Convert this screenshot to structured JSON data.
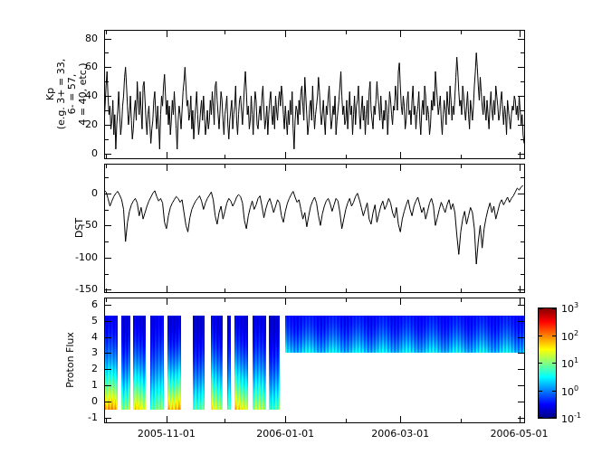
{
  "figure": {
    "background": "#ffffff",
    "line_color": "#000000",
    "x_axis": {
      "domain_days": [
        0,
        216
      ],
      "start_date": "2005-09-30",
      "major_ticks": [
        {
          "day": 32,
          "label": "2005-11-01"
        },
        {
          "day": 93,
          "label": "2006-01-01"
        },
        {
          "day": 152,
          "label": "2006-03-01"
        },
        {
          "day": 213,
          "label": "2006-05-01"
        }
      ],
      "minor_tick_days": [
        1,
        62,
        124,
        183
      ]
    }
  },
  "chart_data": [
    {
      "type": "line",
      "series_name": "Kp",
      "ylabel": "Kp (e.g. 3+ = 33, 6- = 57, 4 = 40, etc.)",
      "ylabel_lines": [
        "Kp",
        "(e.g. 3+ = 33,",
        "6- = 57,",
        "4 = 40, etc.)"
      ],
      "ylim": [
        -4,
        86
      ],
      "yticks": [
        0,
        20,
        40,
        60,
        80
      ],
      "yminor_step": 10,
      "x_start_day": 0,
      "x_step_days": 0.5,
      "values": [
        20,
        33,
        47,
        57,
        40,
        27,
        33,
        17,
        23,
        37,
        13,
        27,
        3,
        20,
        30,
        43,
        27,
        13,
        20,
        33,
        40,
        53,
        60,
        47,
        33,
        20,
        27,
        40,
        23,
        10,
        17,
        30,
        37,
        23,
        50,
        37,
        27,
        43,
        30,
        17,
        47,
        50,
        37,
        23,
        13,
        27,
        33,
        20,
        7,
        17,
        23,
        37,
        43,
        27,
        17,
        33,
        20,
        3,
        27,
        40,
        33,
        47,
        55,
        40,
        27,
        37,
        20,
        33,
        13,
        23,
        37,
        27,
        43,
        30,
        17,
        3,
        23,
        33,
        27,
        17,
        30,
        43,
        50,
        60,
        47,
        33,
        37,
        23,
        27,
        40,
        17,
        30,
        10,
        23,
        33,
        43,
        27,
        13,
        20,
        30,
        37,
        23,
        40,
        27,
        13,
        20,
        30,
        17,
        23,
        37,
        27,
        43,
        33,
        20,
        47,
        50,
        37,
        27,
        17,
        30,
        43,
        37,
        23,
        13,
        27,
        33,
        40,
        20,
        10,
        23,
        30,
        37,
        17,
        27,
        33,
        47,
        23,
        13,
        27,
        37,
        40,
        30,
        20,
        33,
        47,
        57,
        43,
        27,
        33,
        17,
        23,
        40,
        27,
        13,
        30,
        43,
        37,
        20,
        17,
        27,
        33,
        23,
        40,
        47,
        30,
        17,
        23,
        33,
        13,
        27,
        37,
        43,
        27,
        20,
        33,
        17,
        40,
        30,
        23,
        37,
        43,
        33,
        47,
        40,
        27,
        17,
        33,
        23,
        13,
        30,
        20,
        37,
        27,
        43,
        17,
        3,
        23,
        33,
        30,
        20,
        37,
        27,
        43,
        47,
        33,
        23,
        53,
        40,
        27,
        13,
        20,
        33,
        37,
        23,
        47,
        30,
        17,
        27,
        33,
        40,
        53,
        43,
        30,
        20,
        27,
        37,
        23,
        13,
        33,
        27,
        40,
        47,
        30,
        17,
        23,
        33,
        27,
        40,
        13,
        23,
        30,
        37,
        47,
        57,
        40,
        27,
        33,
        20,
        23,
        37,
        17,
        30,
        43,
        27,
        33,
        13,
        27,
        40,
        20,
        33,
        37,
        47,
        27,
        17,
        30,
        40,
        23,
        33,
        13,
        27,
        37,
        20,
        43,
        50,
        30,
        23,
        17,
        33,
        27,
        37,
        50,
        40,
        33,
        23,
        40,
        27,
        17,
        30,
        23,
        37,
        33,
        13,
        27,
        43,
        37,
        27,
        20,
        33,
        30,
        47,
        40,
        30,
        57,
        63,
        47,
        33,
        27,
        40,
        33,
        17,
        23,
        37,
        43,
        27,
        30,
        20,
        37,
        47,
        27,
        33,
        17,
        27,
        33,
        43,
        23,
        13,
        30,
        37,
        27,
        47,
        40,
        23,
        33,
        27,
        13,
        20,
        37,
        30,
        43,
        33,
        57,
        47,
        37,
        27,
        33,
        40,
        23,
        13,
        27,
        37,
        30,
        20,
        43,
        33,
        27,
        47,
        37,
        23,
        33,
        27,
        40,
        53,
        67,
        57,
        43,
        33,
        37,
        27,
        47,
        40,
        30,
        23,
        33,
        43,
        27,
        17,
        37,
        30,
        23,
        33,
        47,
        57,
        70,
        60,
        47,
        37,
        53,
        43,
        33,
        27,
        40,
        30,
        23,
        37,
        27,
        17,
        33,
        43,
        30,
        23,
        37,
        27,
        47,
        40,
        33,
        23,
        27,
        37,
        43,
        30,
        20,
        33,
        27,
        13,
        37,
        30,
        23,
        17,
        27,
        33,
        30,
        40,
        37,
        27,
        33,
        23,
        40,
        30,
        20,
        27,
        13,
        7
      ]
    },
    {
      "type": "line",
      "series_name": "DST",
      "ylabel": "DST",
      "ylim": [
        -155,
        46
      ],
      "yticks": [
        0,
        -50,
        -100,
        -150
      ],
      "yminor_step": 25,
      "x_start_day": 0,
      "x_step_days": 1,
      "values": [
        5,
        2,
        -8,
        -20,
        -12,
        -5,
        0,
        3,
        -3,
        -10,
        -25,
        -75,
        -45,
        -28,
        -18,
        -12,
        -8,
        -15,
        -35,
        -22,
        -40,
        -30,
        -20,
        -12,
        -6,
        0,
        4,
        -5,
        -12,
        -8,
        -15,
        -45,
        -55,
        -35,
        -22,
        -15,
        -10,
        -5,
        -8,
        -14,
        -10,
        -30,
        -50,
        -60,
        -38,
        -25,
        -18,
        -12,
        -8,
        -4,
        -12,
        -25,
        -15,
        -8,
        -3,
        2,
        -10,
        -35,
        -48,
        -30,
        -20,
        -40,
        -28,
        -15,
        -8,
        -12,
        -20,
        -14,
        -6,
        -2,
        -5,
        -15,
        -42,
        -55,
        -35,
        -22,
        -12,
        -25,
        -18,
        -8,
        -4,
        -20,
        -38,
        -24,
        -14,
        -8,
        -18,
        -30,
        -20,
        -10,
        -15,
        -35,
        -45,
        -28,
        -16,
        -8,
        -2,
        3,
        -6,
        -14,
        -10,
        -25,
        -40,
        -30,
        -52,
        -35,
        -20,
        -12,
        -6,
        -15,
        -35,
        -50,
        -32,
        -20,
        -12,
        -8,
        -16,
        -28,
        -18,
        -8,
        -12,
        -30,
        -55,
        -40,
        -25,
        -15,
        -8,
        -20,
        -14,
        -5,
        0,
        -10,
        -22,
        -35,
        -25,
        -15,
        -40,
        -48,
        -30,
        -18,
        -45,
        -32,
        -20,
        -12,
        -25,
        -18,
        -8,
        -15,
        -30,
        -38,
        -22,
        -48,
        -60,
        -40,
        -28,
        -18,
        -10,
        -25,
        -35,
        -20,
        -12,
        -6,
        -18,
        -30,
        -22,
        -40,
        -28,
        -15,
        -8,
        -20,
        -50,
        -38,
        -25,
        -14,
        -22,
        -30,
        -18,
        -10,
        -25,
        -16,
        -30,
        -65,
        -95,
        -60,
        -40,
        -28,
        -48,
        -35,
        -22,
        -30,
        -55,
        -110,
        -75,
        -50,
        -85,
        -55,
        -38,
        -25,
        -15,
        -30,
        -20,
        -40,
        -28,
        -16,
        -10,
        -18,
        -12,
        -6,
        -14,
        -8,
        -4,
        2,
        8,
        5,
        10,
        12
      ]
    },
    {
      "type": "heatmap",
      "series_name": "Proton Flux",
      "ylabel": "Proton Flux",
      "ylim": [
        -1.35,
        6.45
      ],
      "yticks": [
        -1,
        0,
        1,
        2,
        3,
        4,
        5,
        6
      ],
      "colormap": "jet",
      "flux_log_range": [
        -1,
        3
      ],
      "segments": [
        {
          "t0": 0,
          "t1": 7,
          "y0": -0.5,
          "y1": 5.3,
          "logf_bottom": 1.8,
          "logf_top": -0.6
        },
        {
          "t0": 9,
          "t1": 13.5,
          "y0": -0.5,
          "y1": 5.3,
          "logf_bottom": 1.2,
          "logf_top": -0.6
        },
        {
          "t0": 15,
          "t1": 21.5,
          "y0": -0.5,
          "y1": 5.3,
          "logf_bottom": 1.5,
          "logf_top": -0.65
        },
        {
          "t0": 23.5,
          "t1": 30.5,
          "y0": -0.5,
          "y1": 5.3,
          "logf_bottom": 0.9,
          "logf_top": -0.6
        },
        {
          "t0": 32.5,
          "t1": 39.5,
          "y0": -0.5,
          "y1": 5.3,
          "logf_bottom": 1.9,
          "logf_top": -0.6
        },
        {
          "t0": 45.5,
          "t1": 51.5,
          "y0": -0.5,
          "y1": 5.3,
          "logf_bottom": 1.0,
          "logf_top": -0.65
        },
        {
          "t0": 55,
          "t1": 61,
          "y0": -0.5,
          "y1": 5.3,
          "logf_bottom": 1.4,
          "logf_top": -0.6
        },
        {
          "t0": 63,
          "t1": 65,
          "y0": -0.5,
          "y1": 5.3,
          "logf_bottom": 0.8,
          "logf_top": -0.7
        },
        {
          "t0": 67,
          "t1": 74,
          "y0": -0.5,
          "y1": 5.3,
          "logf_bottom": 1.6,
          "logf_top": -0.6
        },
        {
          "t0": 76,
          "t1": 83,
          "y0": -0.5,
          "y1": 5.3,
          "logf_bottom": 1.1,
          "logf_top": -0.65
        },
        {
          "t0": 84.5,
          "t1": 90,
          "y0": -0.5,
          "y1": 5.3,
          "logf_bottom": 0.9,
          "logf_top": -0.65
        },
        {
          "t0": 93,
          "t1": 216,
          "y0": 3,
          "y1": 5.3,
          "logf_bottom": 0.35,
          "logf_top": -0.45
        }
      ],
      "colorbar": {
        "scale": "log",
        "base_label": "10",
        "tick_exponents": [
          "3",
          "2",
          "1",
          "0",
          "-1"
        ],
        "tick_values": [
          1000,
          100,
          10,
          1,
          0.1
        ]
      }
    }
  ]
}
